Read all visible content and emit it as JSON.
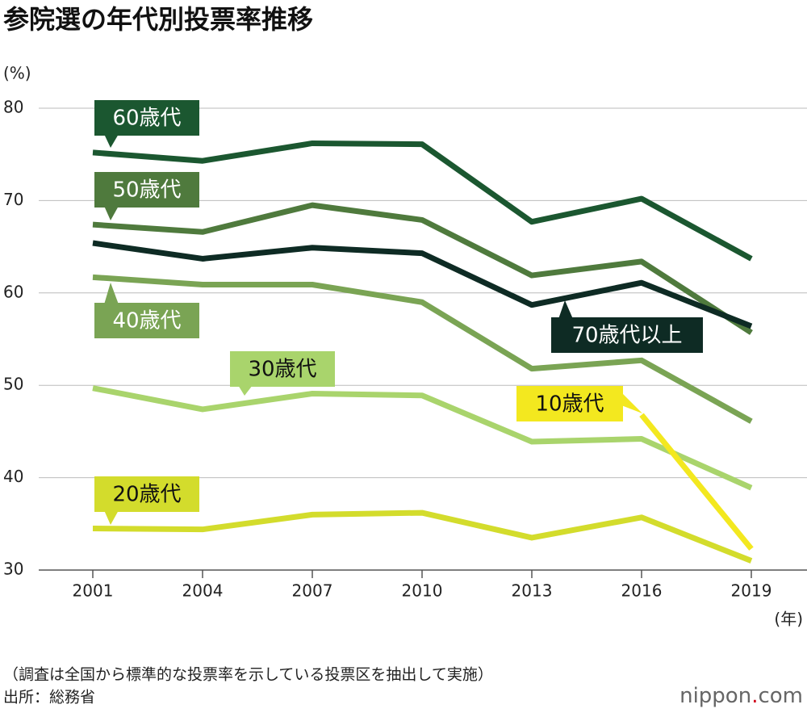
{
  "chart_data": {
    "type": "line",
    "title": "参院選の年代別投票率推移",
    "y_unit": "(%)",
    "x_unit": "(年)",
    "categories": [
      "2001",
      "2004",
      "2007",
      "2010",
      "2013",
      "2016",
      "2019"
    ],
    "series": [
      {
        "name": "60歳代",
        "color": "#1b5730",
        "values": [
          75.2,
          74.3,
          76.2,
          76.1,
          67.7,
          70.2,
          63.7
        ]
      },
      {
        "name": "50歳代",
        "color": "#4f7a3d",
        "values": [
          67.4,
          66.6,
          69.5,
          67.9,
          61.9,
          63.4,
          55.7
        ]
      },
      {
        "name": "70歳代以上",
        "color": "#0e2b24",
        "values": [
          65.4,
          63.7,
          64.9,
          64.3,
          58.7,
          61.1,
          56.4
        ]
      },
      {
        "name": "40歳代",
        "color": "#7aa454",
        "values": [
          61.7,
          60.9,
          60.9,
          59.0,
          51.8,
          52.7,
          46.1
        ]
      },
      {
        "name": "30歳代",
        "color": "#a9d46c",
        "values": [
          49.7,
          47.4,
          49.1,
          48.9,
          43.9,
          44.2,
          38.9
        ]
      },
      {
        "name": "20歳代",
        "color": "#d3dc2c",
        "values": [
          34.5,
          34.4,
          36.0,
          36.2,
          33.5,
          35.7,
          31.0
        ]
      },
      {
        "name": "10歳代",
        "color": "#f3e81f",
        "values": [
          null,
          null,
          null,
          null,
          null,
          46.8,
          32.3
        ]
      }
    ],
    "ylim": [
      30,
      80
    ],
    "yticks": [
      30,
      40,
      50,
      60,
      70,
      80
    ],
    "grid": true,
    "note": "（調査は全国から標準的な投票率を示している投票区を抽出して実施）",
    "source": "出所：総務省",
    "logo": [
      "nippon",
      ".",
      "com"
    ]
  }
}
